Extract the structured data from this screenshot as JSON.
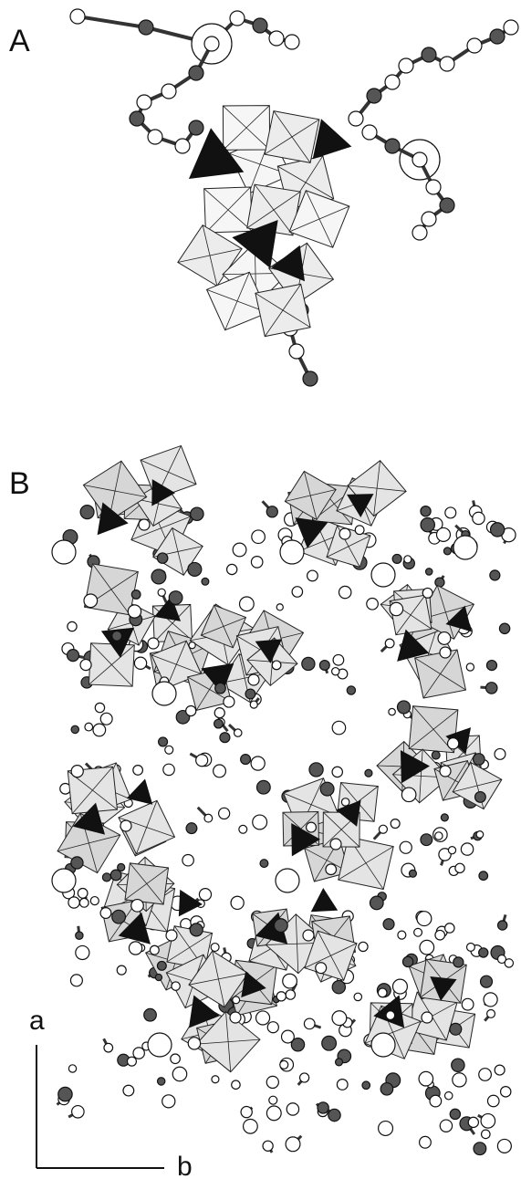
{
  "panels": [
    {
      "label": "A"
    },
    {
      "label": "B"
    }
  ],
  "axes": {
    "vertical": "a",
    "horizontal": "b"
  }
}
